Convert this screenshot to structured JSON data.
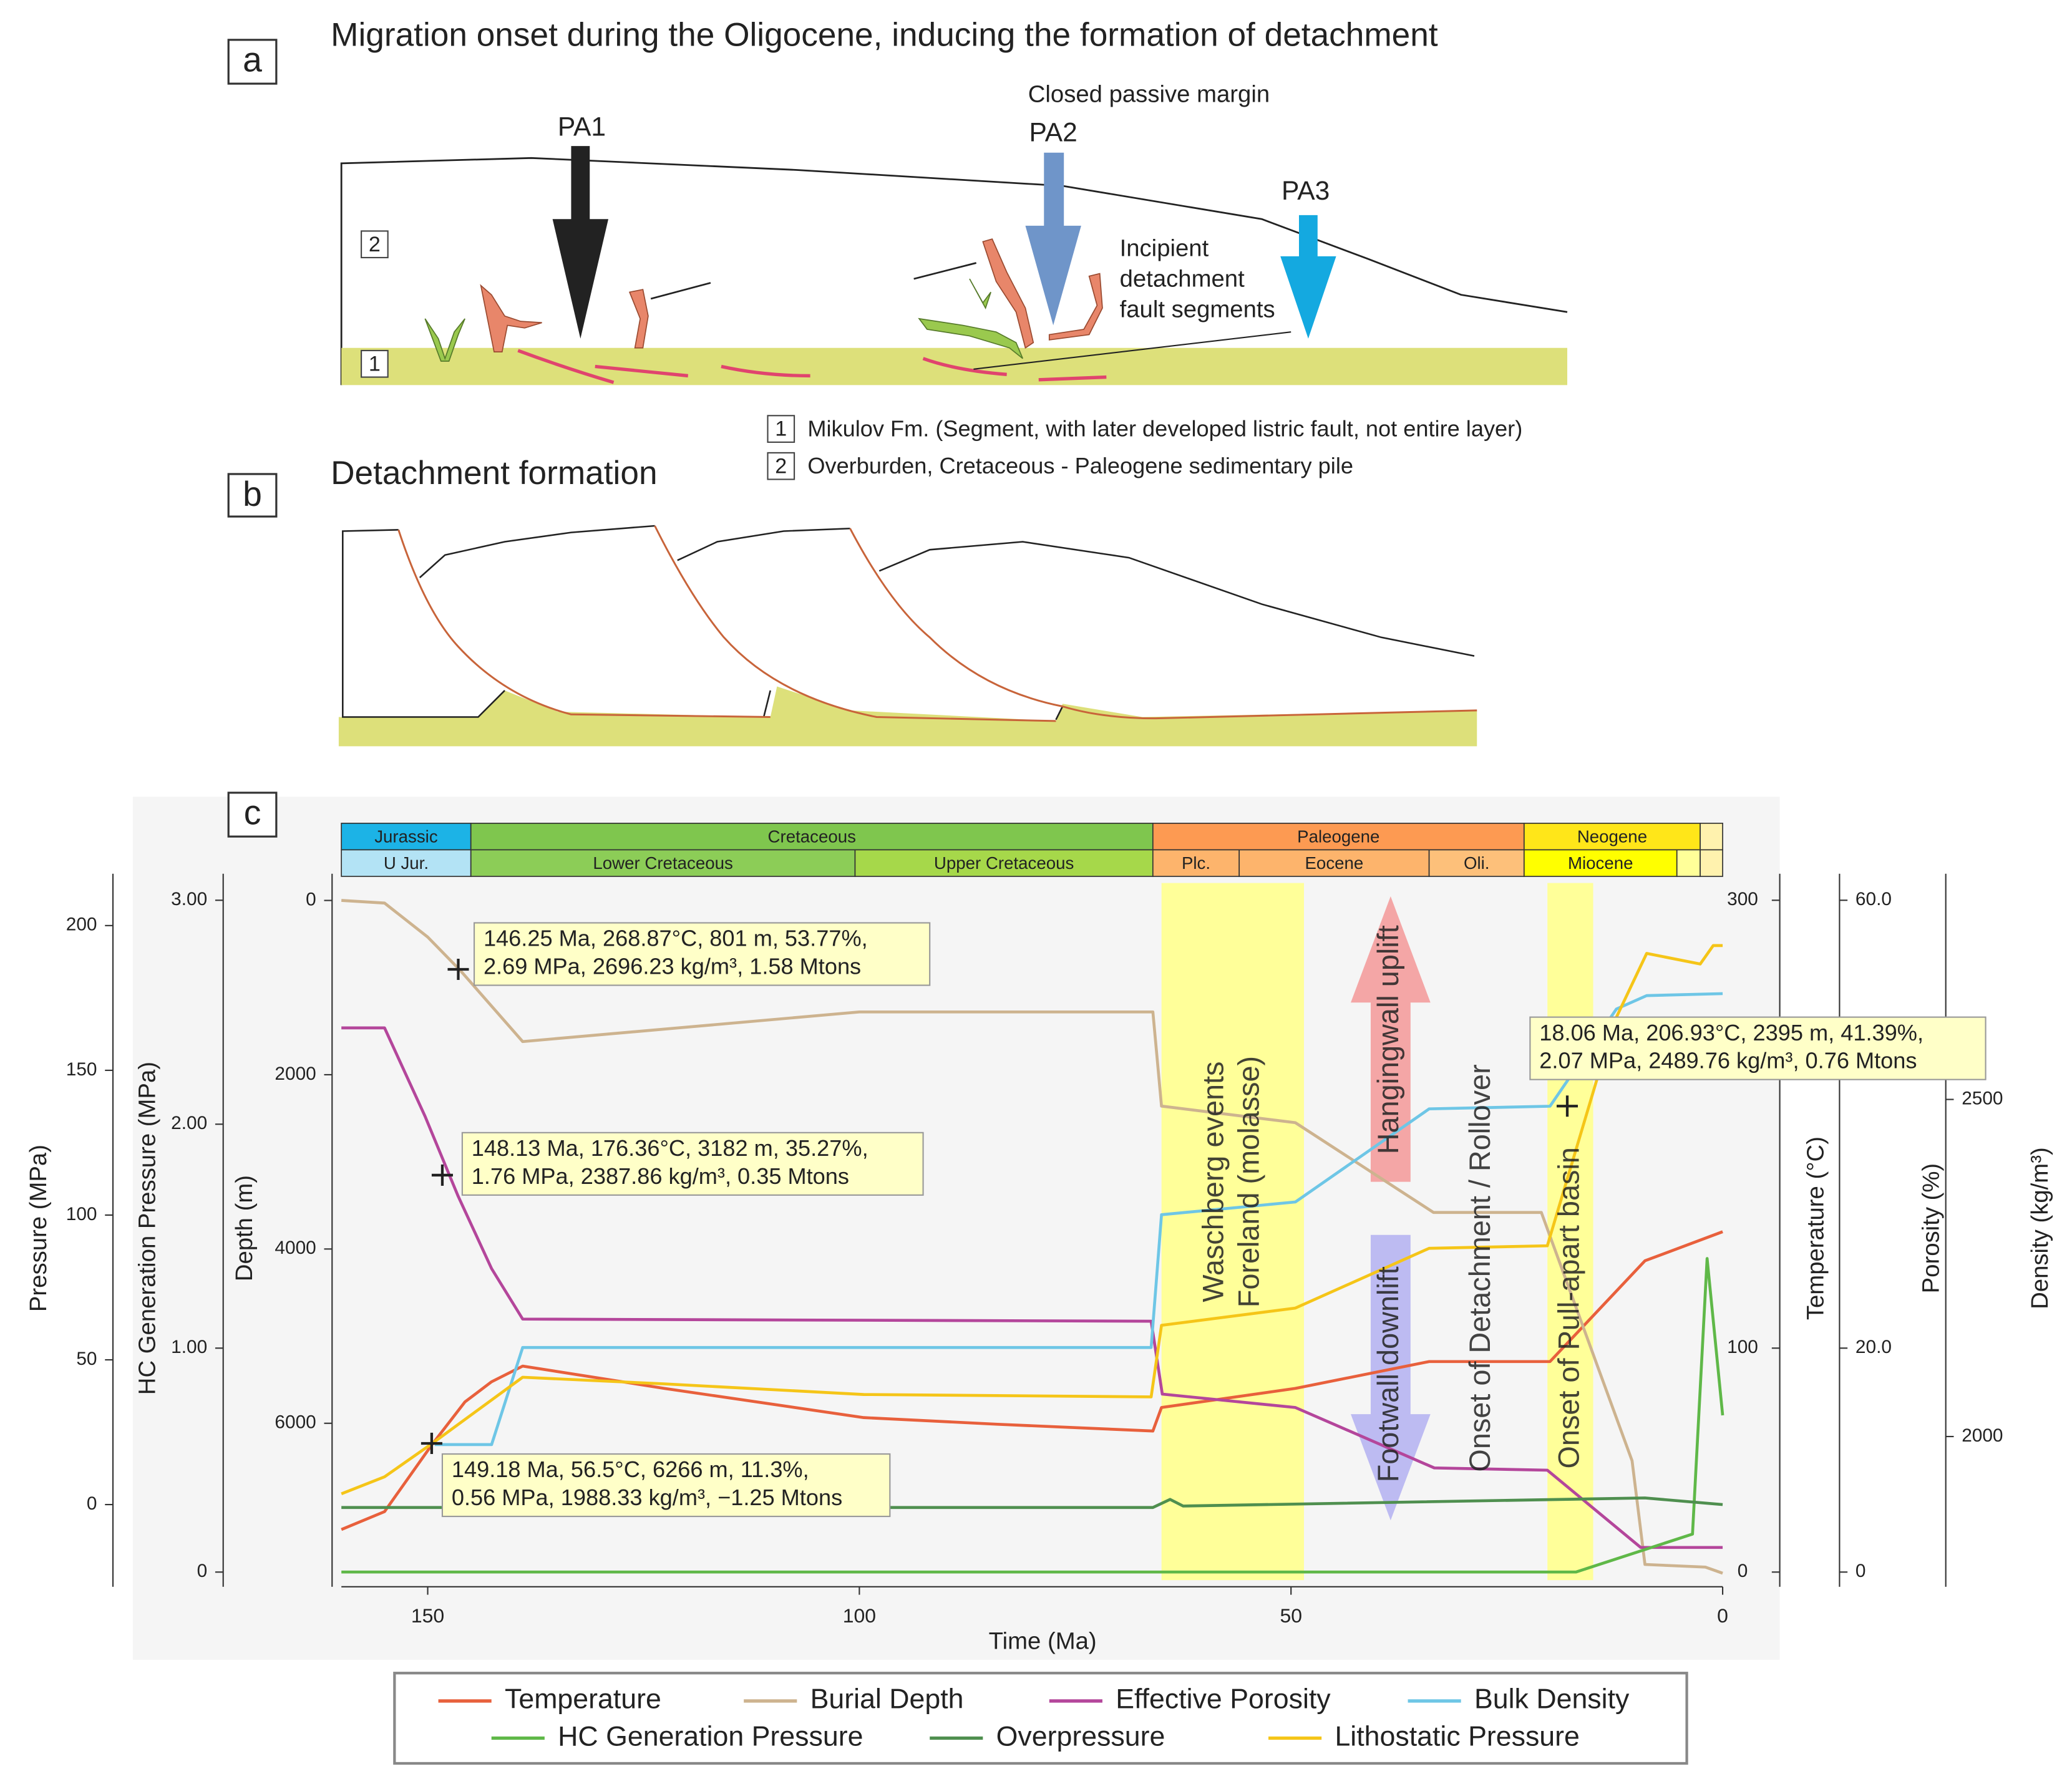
{
  "panel_a": {
    "label": "a",
    "title": "Migration onset during the Oligocene, inducing the formation of detachment",
    "margin_label": "Closed passive margin",
    "arrows": [
      "PA1",
      "PA2",
      "PA3"
    ],
    "layer_boxes": [
      "2",
      "1"
    ],
    "fault_note": [
      "Incipient",
      "detachment",
      "fault segments"
    ],
    "legend": [
      {
        "key": "1",
        "text": "Mikulov Fm. (Segment, with later developed listric fault, not entire layer)"
      },
      {
        "key": "2",
        "text": "Overburden, Cretaceous - Paleogene sedimentary pile"
      }
    ]
  },
  "panel_b": {
    "label": "b",
    "title": "Detachment formation"
  },
  "panel_c": {
    "label": "c"
  },
  "chart_data": {
    "type": "line",
    "x_label": "Time (Ma)",
    "xlim": [
      160,
      0
    ],
    "xticks": [
      150,
      100,
      50,
      0
    ],
    "y_axes": [
      {
        "label": "Pressure (MPa)",
        "ylim": [
          -26.1,
          214.7
        ],
        "yticks": [
          0,
          50,
          100,
          150,
          200
        ]
      },
      {
        "label": "HC Generation Pressure (MPa)",
        "ylim": [
          -0.036,
          3.077
        ],
        "yticks": [
          0,
          {
            "value": 1,
            "label": "1.00"
          },
          {
            "value": 2,
            "label": "2.00"
          },
          {
            "value": 3,
            "label": "3.00"
          }
        ]
      },
      {
        "label": "Depth (m)",
        "ylim": [
          7800,
          -200
        ],
        "yticks": [
          0,
          2000,
          4000,
          6000
        ]
      },
      {
        "label": "Temperature (°C)",
        "ylim": [
          -3.6,
          307.7
        ],
        "yticks": [
          0,
          100,
          300
        ]
      },
      {
        "label": "Porosity (%)",
        "ylim": [
          -0.72,
          61.54
        ],
        "yticks": [
          0,
          {
            "value": 20,
            "label": "20.0"
          },
          {
            "value": 60,
            "label": "60.0"
          }
        ]
      },
      {
        "label": "Density (kg/m³)",
        "ylim": [
          1787,
          2821
        ],
        "yticks": [
          2000,
          2500
        ]
      }
    ],
    "timescale": [
      [
        {
          "name": "Jurassic",
          "start": 160,
          "end": 145,
          "color": "#1cb3e6"
        },
        {
          "name": "Cretaceous",
          "start": 145,
          "end": 66,
          "color": "#7fc64e"
        },
        {
          "name": "Paleogene",
          "start": 66,
          "end": 23,
          "color": "#fd9a52"
        },
        {
          "name": "Neogene",
          "start": 23,
          "end": 2.6,
          "color": "#ffe619"
        },
        {
          "name": null,
          "start": 2.6,
          "end": 0,
          "color": "#fff2ae"
        }
      ],
      [
        {
          "name": "U Jur.",
          "start": 160,
          "end": 145,
          "color": "#b3e3f5"
        },
        {
          "name": "Lower Cretaceous",
          "start": 145,
          "end": 100.5,
          "color": "#8ccd57"
        },
        {
          "name": "Upper Cretaceous",
          "start": 100.5,
          "end": 66,
          "color": "#a6d84a"
        },
        {
          "name": "Plc.",
          "start": 66,
          "end": 56,
          "color": "#fdb46c"
        },
        {
          "name": "Eocene",
          "start": 56,
          "end": 34,
          "color": "#fdb46c"
        },
        {
          "name": "Oli.",
          "start": 34,
          "end": 23,
          "color": "#fdc07a"
        },
        {
          "name": "Miocene",
          "start": 23,
          "end": 5.3,
          "color": "#ffff00"
        },
        {
          "name": null,
          "start": 5.3,
          "end": 2.6,
          "color": "#ffff99"
        },
        {
          "name": null,
          "start": 2.6,
          "end": 0,
          "color": "#fff2ae"
        }
      ]
    ],
    "highlight_bands": [
      [
        65,
        48.5
      ],
      [
        20.3,
        15
      ]
    ],
    "band_color": "#ffff99",
    "series": [
      {
        "name": "Temperature",
        "color": "#e8603c",
        "axis": 3,
        "x": [
          160,
          155,
          149.5,
          145.7,
          142.6,
          139,
          122.6,
          99.5,
          84,
          66,
          65,
          49.5,
          34,
          20,
          9,
          0
        ],
        "values": [
          19,
          27,
          57,
          76,
          85,
          92,
          82,
          69,
          66,
          63,
          73.5,
          82,
          94,
          94,
          139,
          152
        ]
      },
      {
        "name": "Burial Depth",
        "color": "#cdb38f",
        "axis": 2,
        "x": [
          160,
          155,
          150,
          146.25,
          139,
          100,
          66,
          65,
          49.5,
          33.5,
          21,
          10.5,
          9,
          2,
          0
        ],
        "values": [
          0,
          30,
          420,
          801,
          1620,
          1280,
          1280,
          2360,
          2550,
          3580,
          3580,
          6430,
          7620,
          7650,
          7720
        ]
      },
      {
        "name": "Effective Porosity",
        "color": "#b4469b",
        "axis": 4,
        "x": [
          160,
          155,
          150.3,
          146.5,
          142.6,
          139,
          66.2,
          64.9,
          49.5,
          33.4,
          20.3,
          9.5,
          0
        ],
        "values": [
          48.6,
          48.6,
          40.7,
          33.6,
          27.1,
          22.6,
          22.4,
          15.9,
          14.7,
          9.3,
          9.1,
          2.2,
          2.2
        ]
      },
      {
        "name": "Bulk Density",
        "color": "#6ec6e6",
        "axis": 5,
        "x": [
          149.2,
          142.6,
          139,
          66.2,
          65,
          49.5,
          34,
          20,
          12.3,
          8.8,
          0
        ],
        "values": [
          1988,
          1988,
          2132,
          2132,
          2329,
          2348,
          2486,
          2490,
          2634,
          2654,
          2657
        ]
      },
      {
        "name": "HC Generation Pressure",
        "color": "#5fb848",
        "axis": 1,
        "x": [
          160,
          17,
          3.5,
          1.8,
          0
        ],
        "values": [
          0,
          0,
          0.17,
          1.4,
          0.7
        ]
      },
      {
        "name": "Overpressure",
        "color": "#4f8f4f",
        "axis": 0,
        "x": [
          160,
          66,
          64,
          62.5,
          9,
          0
        ],
        "values": [
          -1,
          -1,
          1.8,
          -0.5,
          2.3,
          0
        ]
      },
      {
        "name": "Lithostatic Pressure",
        "color": "#f5c518",
        "axis": 0,
        "x": [
          160,
          155,
          149.5,
          139,
          122.6,
          99.5,
          66.2,
          65,
          49.5,
          34,
          20.3,
          12.6,
          8.8,
          2.6,
          1.1,
          0
        ],
        "values": [
          3.7,
          9.6,
          21.1,
          44,
          41.7,
          38,
          37.2,
          61.9,
          67.9,
          88.5,
          89.4,
          166.5,
          190.4,
          186.7,
          193.1,
          193.1
        ]
      }
    ],
    "annotations": [
      {
        "lines": [
          "146.25 Ma, 268.87°C, 801 m, 53.77%,",
          "2.69 MPa, 2696.23 kg/m³, 1.58 Mtons"
        ]
      },
      {
        "lines": [
          "148.13 Ma, 176.36°C, 3182 m, 35.27%,",
          "1.76 MPa, 2387.86 kg/m³, 0.35 Mtons"
        ]
      },
      {
        "lines": [
          "149.18 Ma, 56.5°C, 6266 m, 11.3%,",
          "0.56 MPa, 1988.33 kg/m³, −1.25 Mtons"
        ]
      },
      {
        "lines": [
          "18.06 Ma, 206.93°C, 2395 m, 41.39%,",
          "2.07 MPa, 2489.76 kg/m³, 0.76 Mtons"
        ]
      }
    ],
    "event_labels": [
      "Waschberg events",
      "Foreland (molasse)",
      "Hangingwall uplift",
      "Footwall downlift",
      "Onset of Detachment / Rollover",
      "Onset of Pull-apart basin"
    ]
  }
}
